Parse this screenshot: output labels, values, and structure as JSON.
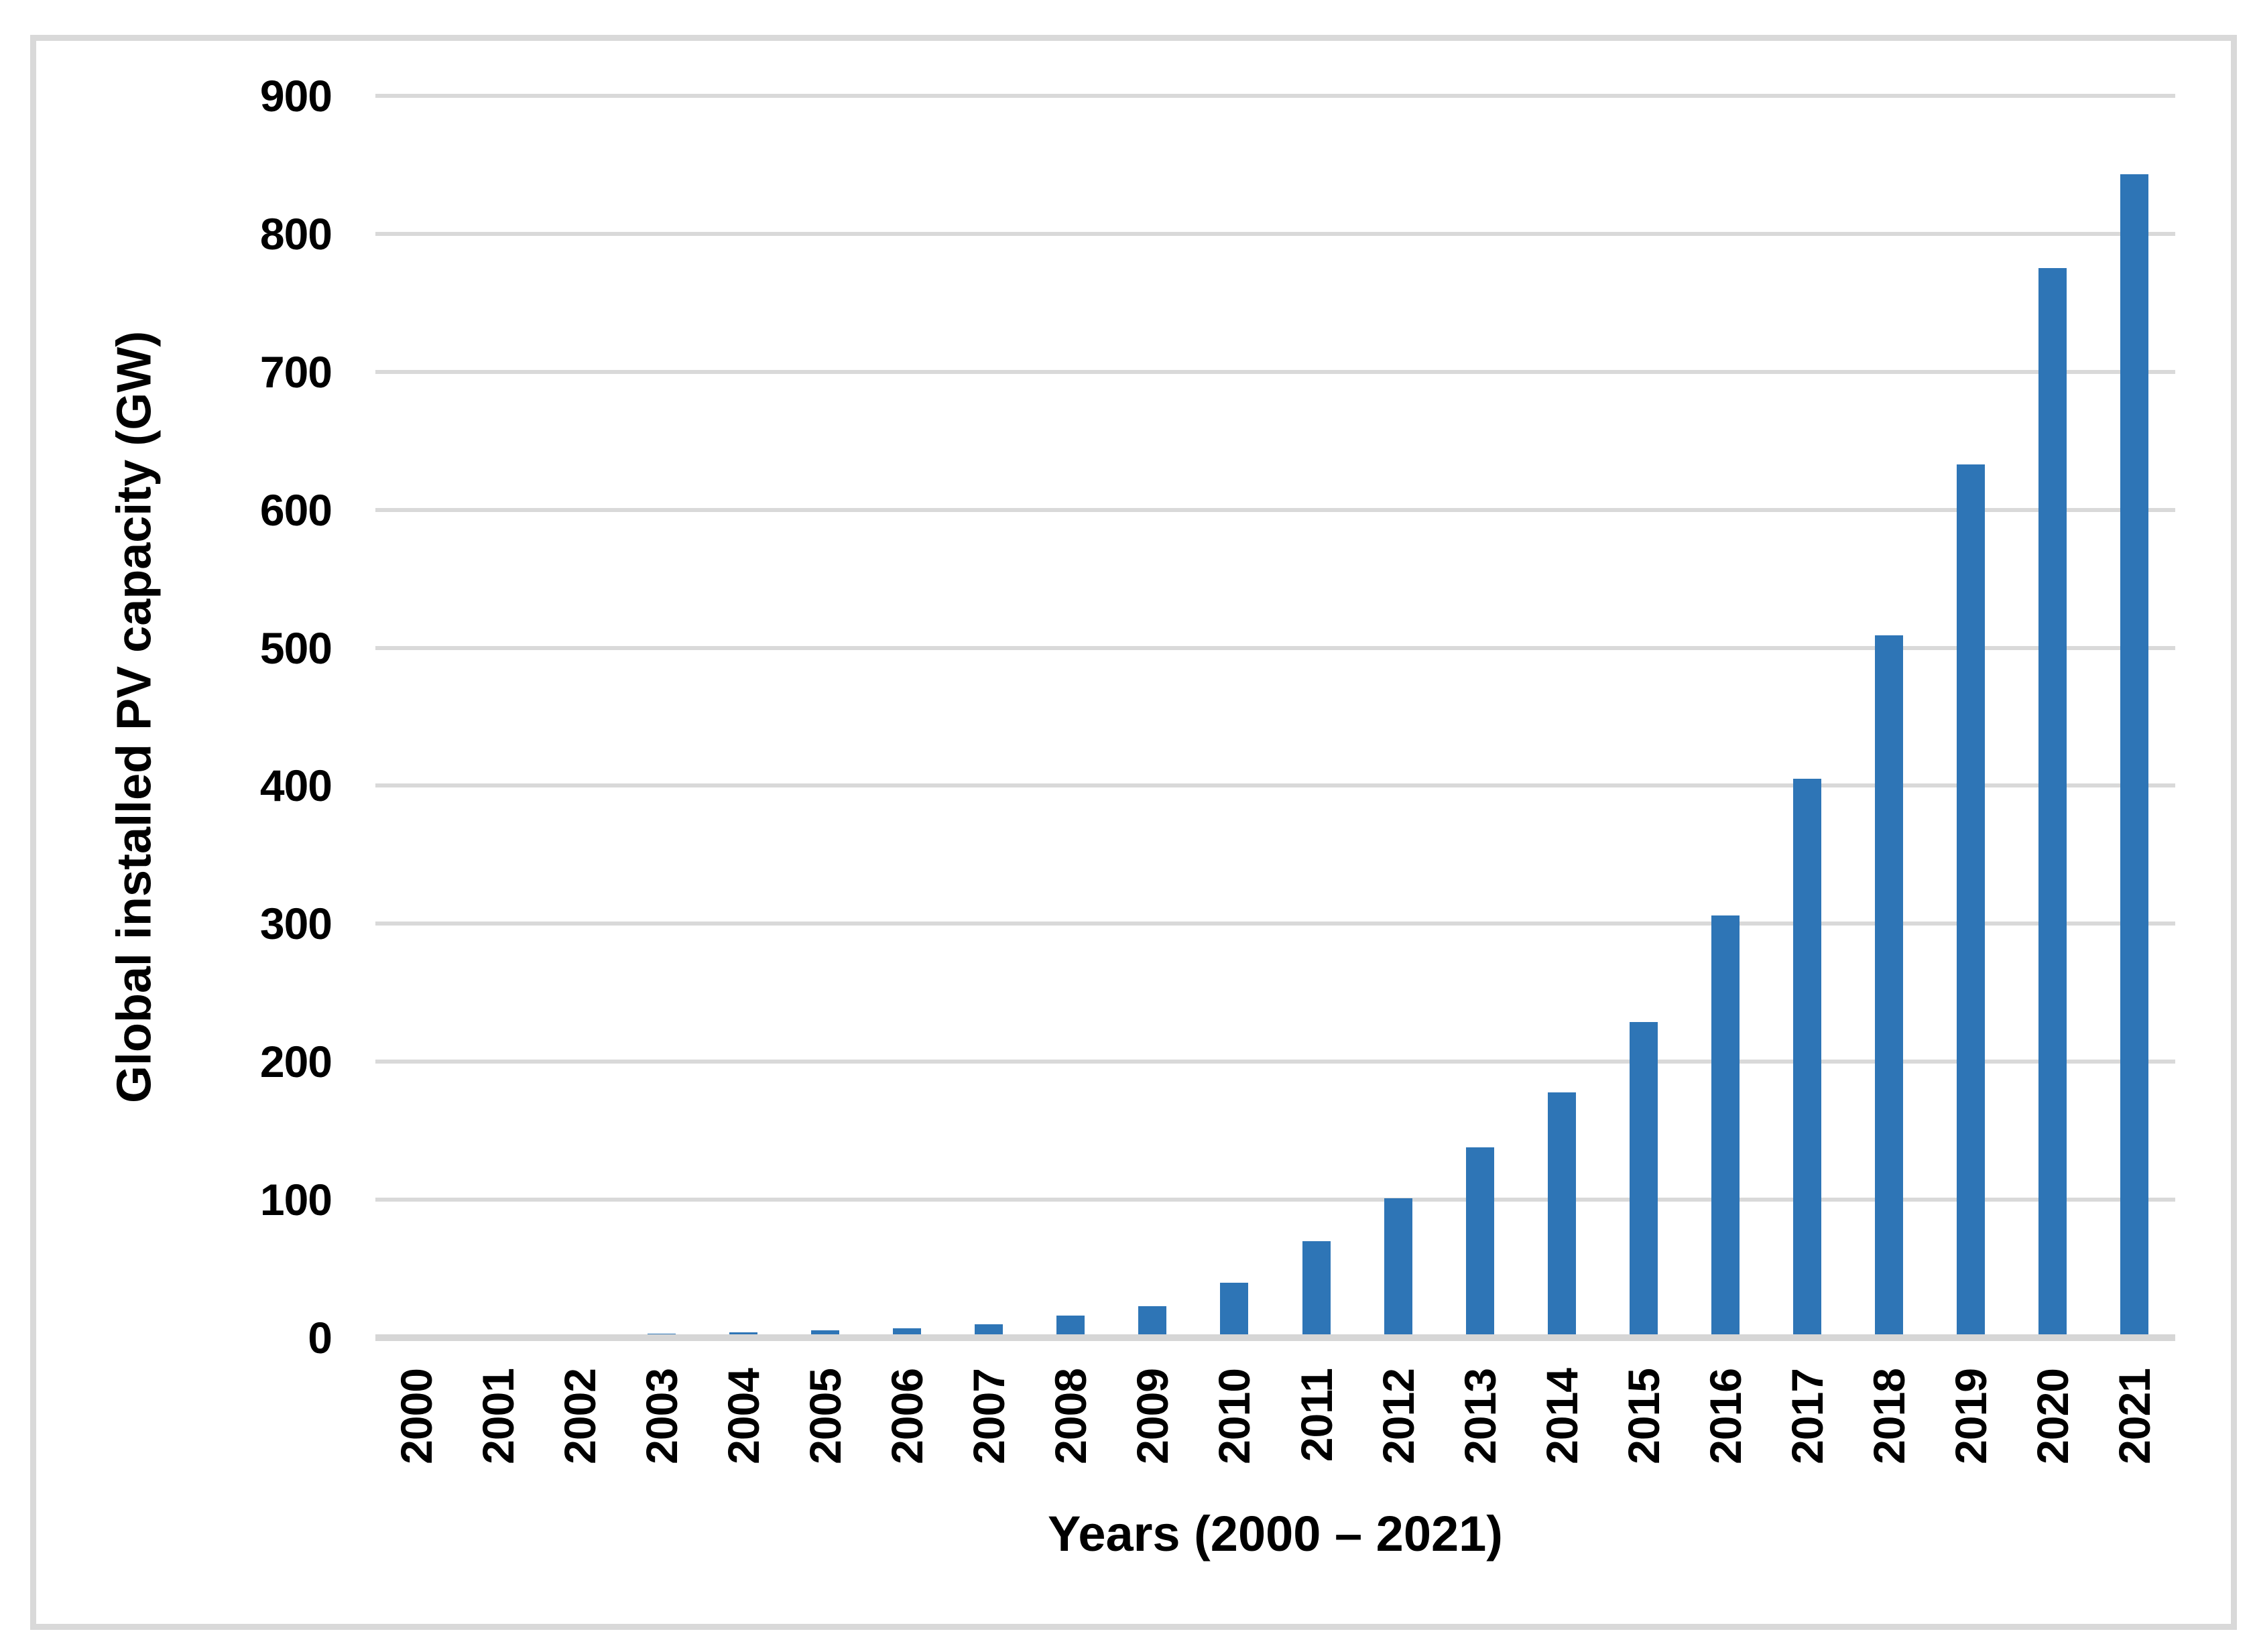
{
  "chart_data": {
    "type": "bar",
    "title": "",
    "xlabel": "Years (2000 – 2021)",
    "ylabel": "Global installed PV capacity (GW)",
    "categories": [
      "2000",
      "2001",
      "2002",
      "2003",
      "2004",
      "2005",
      "2006",
      "2007",
      "2008",
      "2009",
      "2010",
      "2011",
      "2012",
      "2013",
      "2014",
      "2015",
      "2016",
      "2017",
      "2018",
      "2019",
      "2020",
      "2021"
    ],
    "values": [
      1.3,
      1.7,
      2.2,
      3,
      4,
      5.3,
      7,
      9.5,
      16,
      23,
      40,
      70,
      101,
      138,
      178,
      229,
      306,
      405,
      509,
      633,
      775,
      843
    ],
    "unit": "GW",
    "ylim": [
      0,
      900
    ],
    "yticks": [
      0,
      100,
      200,
      300,
      400,
      500,
      600,
      700,
      800,
      900
    ],
    "grid": "horizontal",
    "legend": "none",
    "bar_color": "#2e75b6",
    "gridline_color": "#d9d9d9",
    "axis_line_color": "#d6d6d6",
    "frame_color": "#d9d9d9",
    "text_color": "#000000"
  }
}
